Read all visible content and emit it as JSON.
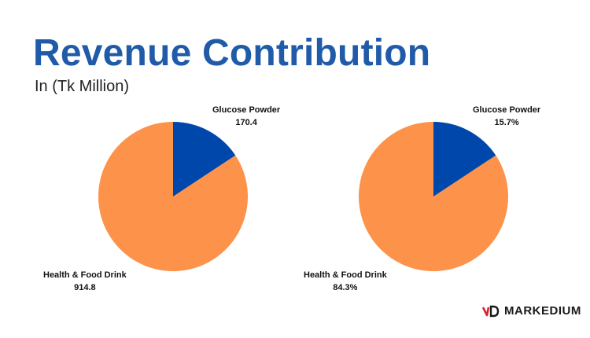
{
  "title": "Revenue Contribution",
  "subtitle": "In (Tk Million)",
  "colors": {
    "health_food_drink": "#fd924b",
    "glucose_powder": "#0047ab"
  },
  "chart_data": [
    {
      "type": "pie",
      "categories": [
        "Glucose Powder",
        "Health & Food Drink"
      ],
      "values": [
        170.4,
        914.8
      ],
      "labels": [
        {
          "name": "Glucose Powder",
          "value": "170.4"
        },
        {
          "name": "Health & Food Drink",
          "value": "914.8"
        }
      ]
    },
    {
      "type": "pie",
      "categories": [
        "Glucose Powder",
        "Health & Food Drink"
      ],
      "values": [
        15.7,
        84.3
      ],
      "labels": [
        {
          "name": "Glucose Powder",
          "value": "15.7%"
        },
        {
          "name": "Health & Food Drink",
          "value": "84.3%"
        }
      ]
    }
  ],
  "logo": {
    "text": "MARKEDIUM"
  }
}
